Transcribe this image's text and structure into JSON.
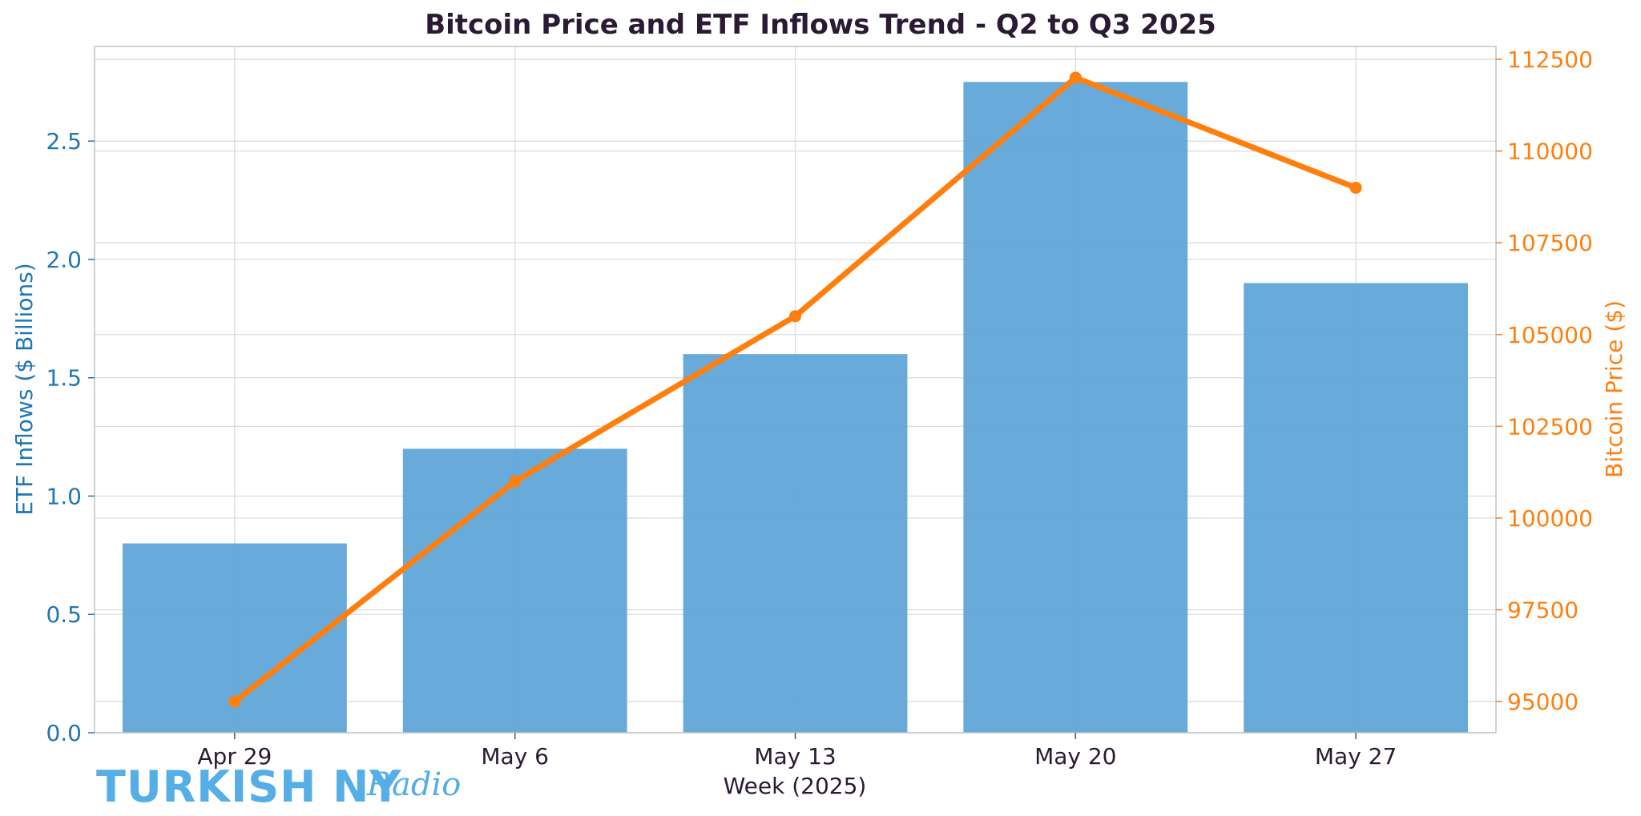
{
  "chart_data": {
    "type": "bar+line",
    "title": "Bitcoin Price and ETF Inflows Trend - Q2 to Q3 2025",
    "xlabel": "Week (2025)",
    "ylabel_left": "ETF Inflows ($ Billions)",
    "ylabel_right": "Bitcoin Price ($)",
    "categories": [
      "Apr 29",
      "May 6",
      "May 13",
      "May 20",
      "May 27"
    ],
    "series": [
      {
        "name": "ETF Inflows",
        "axis": "left",
        "kind": "bar",
        "color": "#5ba4d8",
        "values": [
          0.8,
          1.2,
          1.6,
          2.75,
          1.9
        ]
      },
      {
        "name": "Bitcoin Price",
        "axis": "right",
        "kind": "line",
        "color": "#ff7f0e",
        "values": [
          95000,
          101000,
          105500,
          112000,
          109000
        ]
      }
    ],
    "ylim_left": [
      0,
      2.9
    ],
    "ylim_right": [
      94150,
      112850
    ],
    "yticks_left": [
      "0.0",
      "0.5",
      "1.0",
      "1.5",
      "2.0",
      "2.5"
    ],
    "yticks_right": [
      "95000",
      "97500",
      "100000",
      "102500",
      "105000",
      "107500",
      "110000",
      "112500"
    ],
    "grid": true
  },
  "watermark": {
    "main": "TURKISH NY",
    "script": "Radio"
  }
}
